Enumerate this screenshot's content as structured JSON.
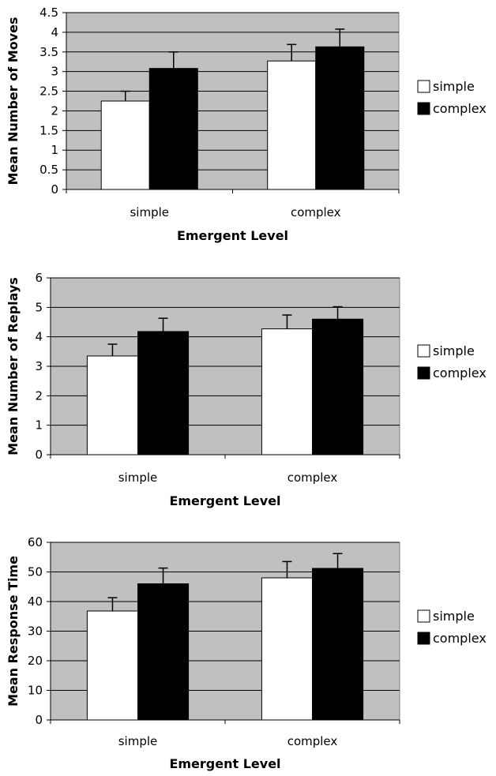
{
  "chart_data": [
    {
      "type": "bar",
      "title": "",
      "xlabel": "Emergent Level",
      "ylabel": "Mean Number of Moves",
      "categories": [
        "simple",
        "complex"
      ],
      "ylim": [
        0,
        4.5
      ],
      "yticks": [
        "0",
        "0.5",
        "1",
        "1.5",
        "2",
        "2.5",
        "3",
        "3.5",
        "4",
        "4.5"
      ],
      "ytick_step": 0.5,
      "series": [
        {
          "name": "simple",
          "values": [
            2.25,
            3.27
          ],
          "errors": [
            0.25,
            0.42
          ],
          "color": "#ffffff"
        },
        {
          "name": "complex",
          "values": [
            3.08,
            3.63
          ],
          "errors": [
            0.42,
            0.45
          ],
          "color": "#000000"
        }
      ],
      "grid": true,
      "legend": "right"
    },
    {
      "type": "bar",
      "title": "",
      "xlabel": "Emergent Level",
      "ylabel": "Mean Number of Replays",
      "categories": [
        "simple",
        "complex"
      ],
      "ylim": [
        0,
        6
      ],
      "yticks": [
        "0",
        "1",
        "2",
        "3",
        "4",
        "5",
        "6"
      ],
      "ytick_step": 1,
      "series": [
        {
          "name": "simple",
          "values": [
            3.35,
            4.27
          ],
          "errors": [
            0.4,
            0.47
          ],
          "color": "#ffffff"
        },
        {
          "name": "complex",
          "values": [
            4.18,
            4.6
          ],
          "errors": [
            0.45,
            0.42
          ],
          "color": "#000000"
        }
      ],
      "grid": true,
      "legend": "right"
    },
    {
      "type": "bar",
      "title": "",
      "xlabel": "Emergent Level",
      "ylabel": "Mean Response Time",
      "categories": [
        "simple",
        "complex"
      ],
      "ylim": [
        0,
        60
      ],
      "yticks": [
        "0",
        "10",
        "20",
        "30",
        "40",
        "50",
        "60"
      ],
      "ytick_step": 10,
      "series": [
        {
          "name": "simple",
          "values": [
            36.8,
            48.0
          ],
          "errors": [
            4.5,
            5.5
          ],
          "color": "#ffffff"
        },
        {
          "name": "complex",
          "values": [
            46.0,
            51.2
          ],
          "errors": [
            5.3,
            5.0
          ],
          "color": "#000000"
        }
      ],
      "grid": true,
      "legend": "right"
    }
  ]
}
